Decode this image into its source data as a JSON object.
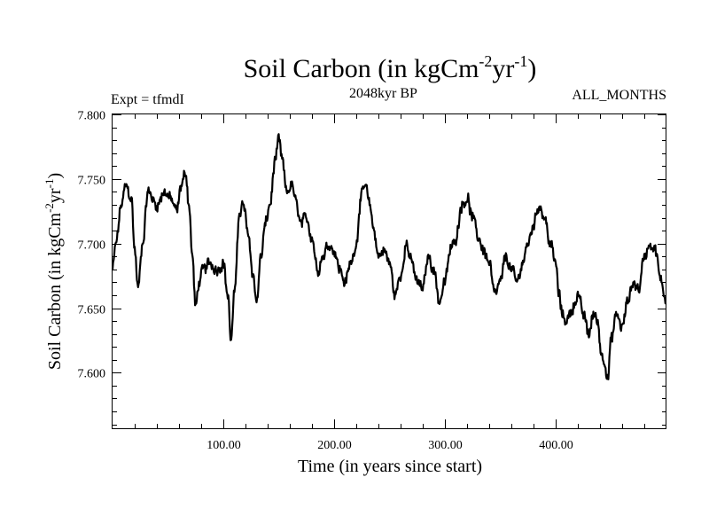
{
  "chart_data": {
    "type": "line",
    "title": {
      "prefix": "Soil Carbon (in kgCm",
      "sup1": "-2",
      "mid": "yr",
      "sup2": "-1",
      "suffix": ")"
    },
    "subtitle": "2048kyr BP",
    "expt_label": "Expt = tfmdI",
    "period_label": "ALL_MONTHS",
    "xlabel": "Time (in years since start)",
    "ylabel": {
      "prefix": "Soil Carbon (in kgCm",
      "sup1": "-2",
      "mid": "yr",
      "sup2": "-1",
      "suffix": ")"
    },
    "xlim": [
      0,
      500
    ],
    "ylim": [
      7.557,
      7.8
    ],
    "x_ticks": [
      {
        "value": 100,
        "label": "100.00"
      },
      {
        "value": 200,
        "label": "200.00"
      },
      {
        "value": 300,
        "label": "300.00"
      },
      {
        "value": 400,
        "label": "400.00"
      }
    ],
    "y_ticks": [
      {
        "value": 7.6,
        "label": "7.600"
      },
      {
        "value": 7.65,
        "label": "7.650"
      },
      {
        "value": 7.7,
        "label": "7.700"
      },
      {
        "value": 7.75,
        "label": "7.750"
      },
      {
        "value": 7.8,
        "label": "7.800"
      }
    ],
    "x_minor_step": 20,
    "y_minor_step": 0.01,
    "series": [
      {
        "name": "Soil Carbon",
        "color": "#000000",
        "noise": 0.006,
        "anchors_x": [
          0,
          3,
          8,
          12,
          17,
          20,
          23,
          27,
          32,
          40,
          47,
          52,
          58,
          62,
          66,
          69,
          72,
          75,
          78,
          82,
          88,
          94,
          100,
          104,
          107,
          110,
          114,
          118,
          122,
          127,
          130,
          134,
          138,
          142,
          147,
          150,
          153,
          157,
          162,
          166,
          170,
          175,
          180,
          185,
          190,
          195,
          200,
          205,
          210,
          215,
          220,
          224,
          228,
          232,
          236,
          240,
          245,
          250,
          255,
          260,
          265,
          270,
          275,
          280,
          285,
          290,
          295,
          300,
          305,
          310,
          315,
          320,
          325,
          330,
          335,
          340,
          345,
          350,
          355,
          360,
          365,
          370,
          375,
          380,
          385,
          390,
          395,
          400,
          403,
          406,
          410,
          415,
          420,
          425,
          430,
          434,
          438,
          441,
          444,
          447,
          450,
          455,
          460,
          465,
          470,
          475,
          480,
          485,
          490,
          495,
          500
        ],
        "anchors_y": [
          7.68,
          7.7,
          7.73,
          7.745,
          7.735,
          7.695,
          7.665,
          7.7,
          7.74,
          7.73,
          7.74,
          7.735,
          7.725,
          7.745,
          7.755,
          7.73,
          7.69,
          7.65,
          7.67,
          7.68,
          7.685,
          7.68,
          7.685,
          7.66,
          7.625,
          7.66,
          7.72,
          7.73,
          7.71,
          7.675,
          7.655,
          7.69,
          7.715,
          7.73,
          7.765,
          7.78,
          7.765,
          7.74,
          7.745,
          7.73,
          7.715,
          7.72,
          7.705,
          7.68,
          7.69,
          7.7,
          7.695,
          7.68,
          7.67,
          7.685,
          7.7,
          7.735,
          7.745,
          7.73,
          7.71,
          7.69,
          7.695,
          7.685,
          7.66,
          7.675,
          7.7,
          7.685,
          7.67,
          7.665,
          7.69,
          7.68,
          7.655,
          7.67,
          7.695,
          7.705,
          7.73,
          7.735,
          7.72,
          7.705,
          7.695,
          7.685,
          7.66,
          7.67,
          7.69,
          7.68,
          7.67,
          7.685,
          7.7,
          7.715,
          7.73,
          7.72,
          7.7,
          7.685,
          7.66,
          7.645,
          7.64,
          7.65,
          7.66,
          7.645,
          7.63,
          7.645,
          7.64,
          7.615,
          7.61,
          7.595,
          7.625,
          7.645,
          7.635,
          7.655,
          7.67,
          7.665,
          7.69,
          7.7,
          7.695,
          7.67,
          7.655
        ]
      }
    ]
  }
}
